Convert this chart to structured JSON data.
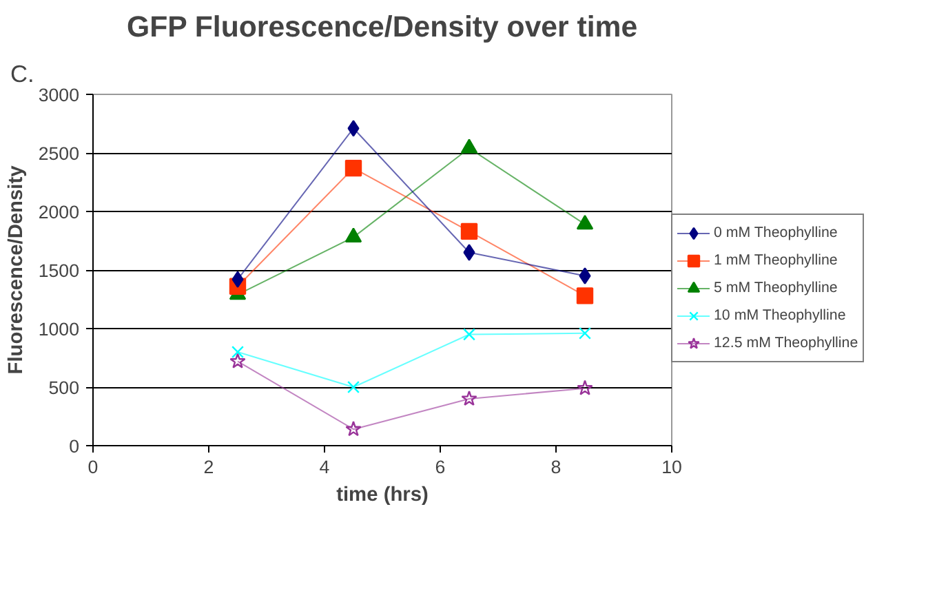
{
  "chart_data": {
    "type": "line",
    "title": "GFP Fluorescence/Density over time",
    "xlabel": "time (hrs)",
    "ylabel": "Fluorescence/Density",
    "annotations": [
      "C."
    ],
    "x": [
      2.5,
      4.5,
      6.5,
      8.5
    ],
    "xlim": [
      0,
      10
    ],
    "xticks": [
      0,
      2,
      4,
      6,
      8,
      10
    ],
    "ylim": [
      0,
      3000
    ],
    "yticks": [
      0,
      500,
      1000,
      1500,
      2000,
      2500,
      3000
    ],
    "grid": "y",
    "legend": "right",
    "series": [
      {
        "name": "0 mM Theophylline",
        "color": "#000080",
        "marker": "diamond",
        "values": [
          1420,
          2710,
          1650,
          1450
        ]
      },
      {
        "name": "1 mM Theophylline",
        "color": "#ff3300",
        "marker": "square",
        "values": [
          1360,
          2370,
          1830,
          1280
        ]
      },
      {
        "name": "5 mM Theophylline",
        "color": "#008000",
        "marker": "triangle",
        "values": [
          1290,
          1780,
          2540,
          1890
        ]
      },
      {
        "name": "10 mM Theophylline",
        "color": "#00ffff",
        "marker": "cross",
        "values": [
          800,
          500,
          950,
          960
        ]
      },
      {
        "name": "12.5 mM Theophylline",
        "color": "#993399",
        "marker": "star",
        "values": [
          720,
          140,
          400,
          490
        ]
      }
    ]
  }
}
